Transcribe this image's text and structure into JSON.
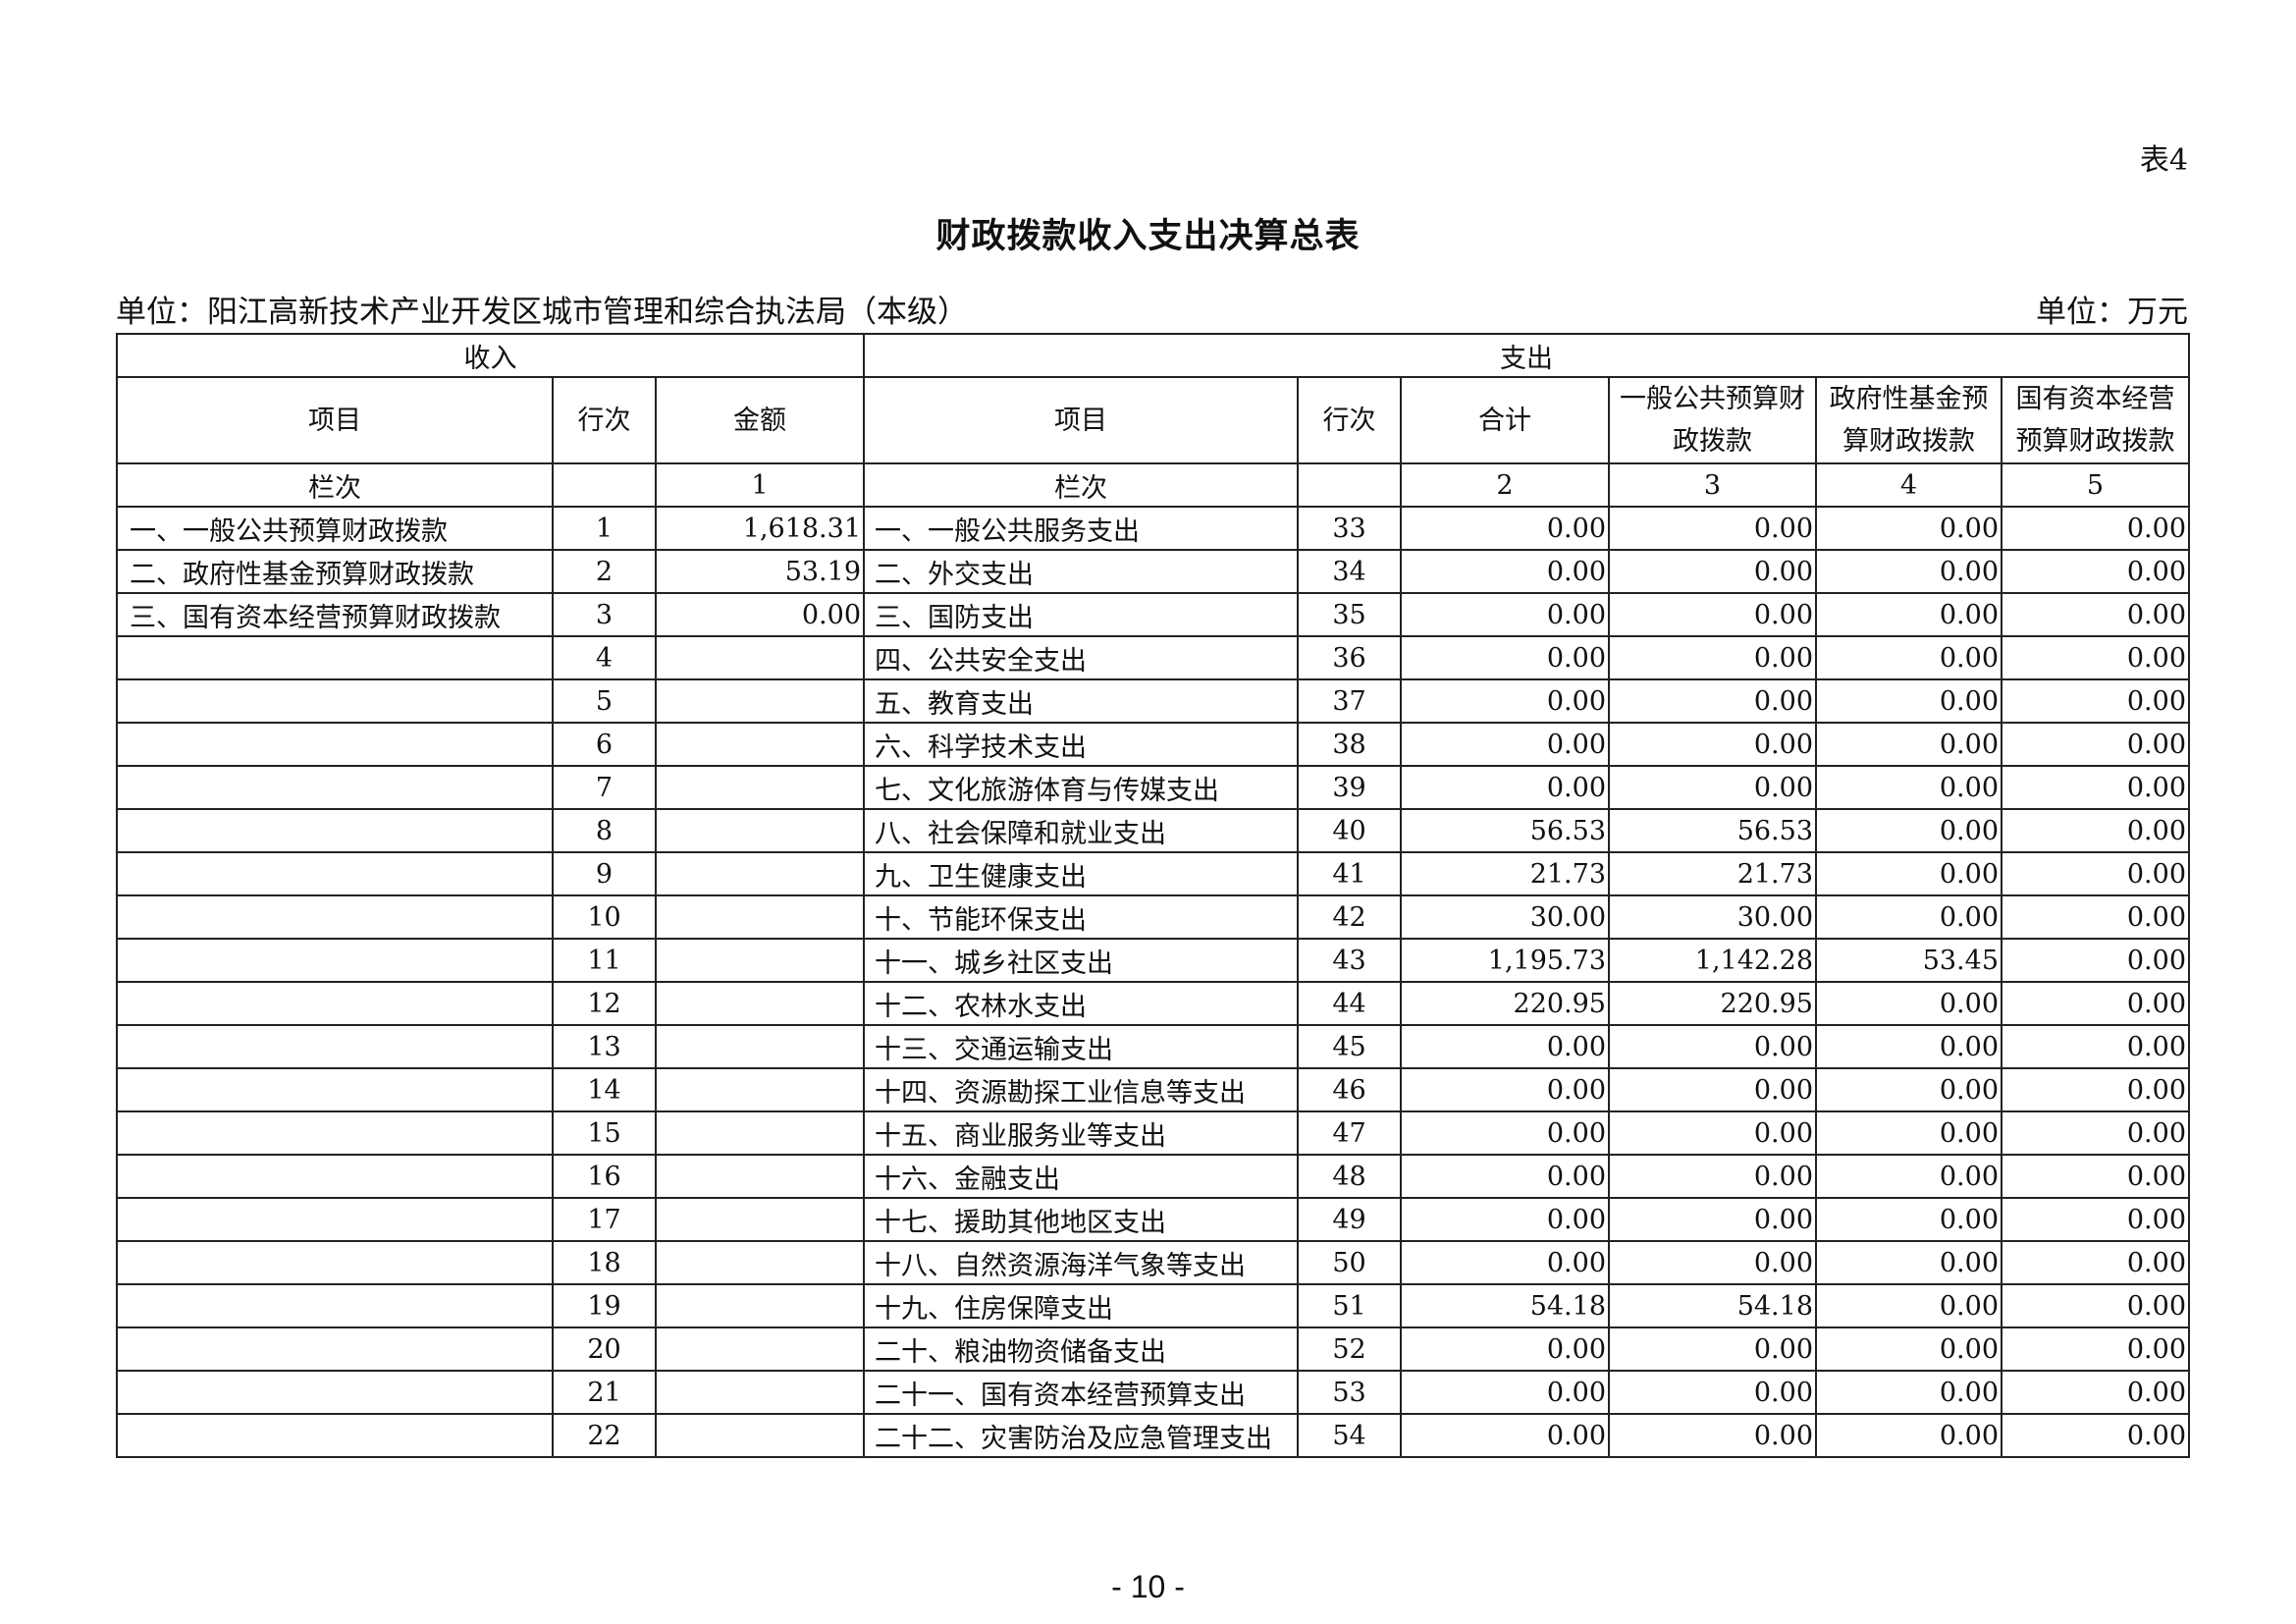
{
  "table_no": "表4",
  "title": "财政拨款收入支出决算总表",
  "unit_org": "单位：阳江高新技术产业开发区城市管理和综合执法局（本级）",
  "unit_currency": "单位：万元",
  "headers": {
    "income": "收入",
    "expense": "支出",
    "item": "项目",
    "row_no": "行次",
    "amount": "金额",
    "item2": "项目",
    "row_no2": "行次",
    "total": "合计",
    "general": "一般公共预算财政拨款",
    "fund": "政府性基金预算财政拨款",
    "state_capital": "国有资本经营预算财政拨款",
    "col_label": "栏次",
    "col_label2": "栏次",
    "col1": "1",
    "col2": "2",
    "col3": "3",
    "col4": "4",
    "col5": "5"
  },
  "rows": [
    [
      "一、一般公共预算财政拨款",
      "1",
      "1,618.31",
      "一、一般公共服务支出",
      "33",
      "0.00",
      "0.00",
      "0.00",
      "0.00"
    ],
    [
      "二、政府性基金预算财政拨款",
      "2",
      "53.19",
      "二、外交支出",
      "34",
      "0.00",
      "0.00",
      "0.00",
      "0.00"
    ],
    [
      "三、国有资本经营预算财政拨款",
      "3",
      "0.00",
      "三、国防支出",
      "35",
      "0.00",
      "0.00",
      "0.00",
      "0.00"
    ],
    [
      "",
      "4",
      "",
      "四、公共安全支出",
      "36",
      "0.00",
      "0.00",
      "0.00",
      "0.00"
    ],
    [
      "",
      "5",
      "",
      "五、教育支出",
      "37",
      "0.00",
      "0.00",
      "0.00",
      "0.00"
    ],
    [
      "",
      "6",
      "",
      "六、科学技术支出",
      "38",
      "0.00",
      "0.00",
      "0.00",
      "0.00"
    ],
    [
      "",
      "7",
      "",
      "七、文化旅游体育与传媒支出",
      "39",
      "0.00",
      "0.00",
      "0.00",
      "0.00"
    ],
    [
      "",
      "8",
      "",
      "八、社会保障和就业支出",
      "40",
      "56.53",
      "56.53",
      "0.00",
      "0.00"
    ],
    [
      "",
      "9",
      "",
      "九、卫生健康支出",
      "41",
      "21.73",
      "21.73",
      "0.00",
      "0.00"
    ],
    [
      "",
      "10",
      "",
      "十、节能环保支出",
      "42",
      "30.00",
      "30.00",
      "0.00",
      "0.00"
    ],
    [
      "",
      "11",
      "",
      "十一、城乡社区支出",
      "43",
      "1,195.73",
      "1,142.28",
      "53.45",
      "0.00"
    ],
    [
      "",
      "12",
      "",
      "十二、农林水支出",
      "44",
      "220.95",
      "220.95",
      "0.00",
      "0.00"
    ],
    [
      "",
      "13",
      "",
      "十三、交通运输支出",
      "45",
      "0.00",
      "0.00",
      "0.00",
      "0.00"
    ],
    [
      "",
      "14",
      "",
      "十四、资源勘探工业信息等支出",
      "46",
      "0.00",
      "0.00",
      "0.00",
      "0.00"
    ],
    [
      "",
      "15",
      "",
      "十五、商业服务业等支出",
      "47",
      "0.00",
      "0.00",
      "0.00",
      "0.00"
    ],
    [
      "",
      "16",
      "",
      "十六、金融支出",
      "48",
      "0.00",
      "0.00",
      "0.00",
      "0.00"
    ],
    [
      "",
      "17",
      "",
      "十七、援助其他地区支出",
      "49",
      "0.00",
      "0.00",
      "0.00",
      "0.00"
    ],
    [
      "",
      "18",
      "",
      "十八、自然资源海洋气象等支出",
      "50",
      "0.00",
      "0.00",
      "0.00",
      "0.00"
    ],
    [
      "",
      "19",
      "",
      "十九、住房保障支出",
      "51",
      "54.18",
      "54.18",
      "0.00",
      "0.00"
    ],
    [
      "",
      "20",
      "",
      "二十、粮油物资储备支出",
      "52",
      "0.00",
      "0.00",
      "0.00",
      "0.00"
    ],
    [
      "",
      "21",
      "",
      "二十一、国有资本经营预算支出",
      "53",
      "0.00",
      "0.00",
      "0.00",
      "0.00"
    ],
    [
      "",
      "22",
      "",
      "二十二、灾害防治及应急管理支出",
      "54",
      "0.00",
      "0.00",
      "0.00",
      "0.00"
    ]
  ],
  "page_number": "- 10 -"
}
